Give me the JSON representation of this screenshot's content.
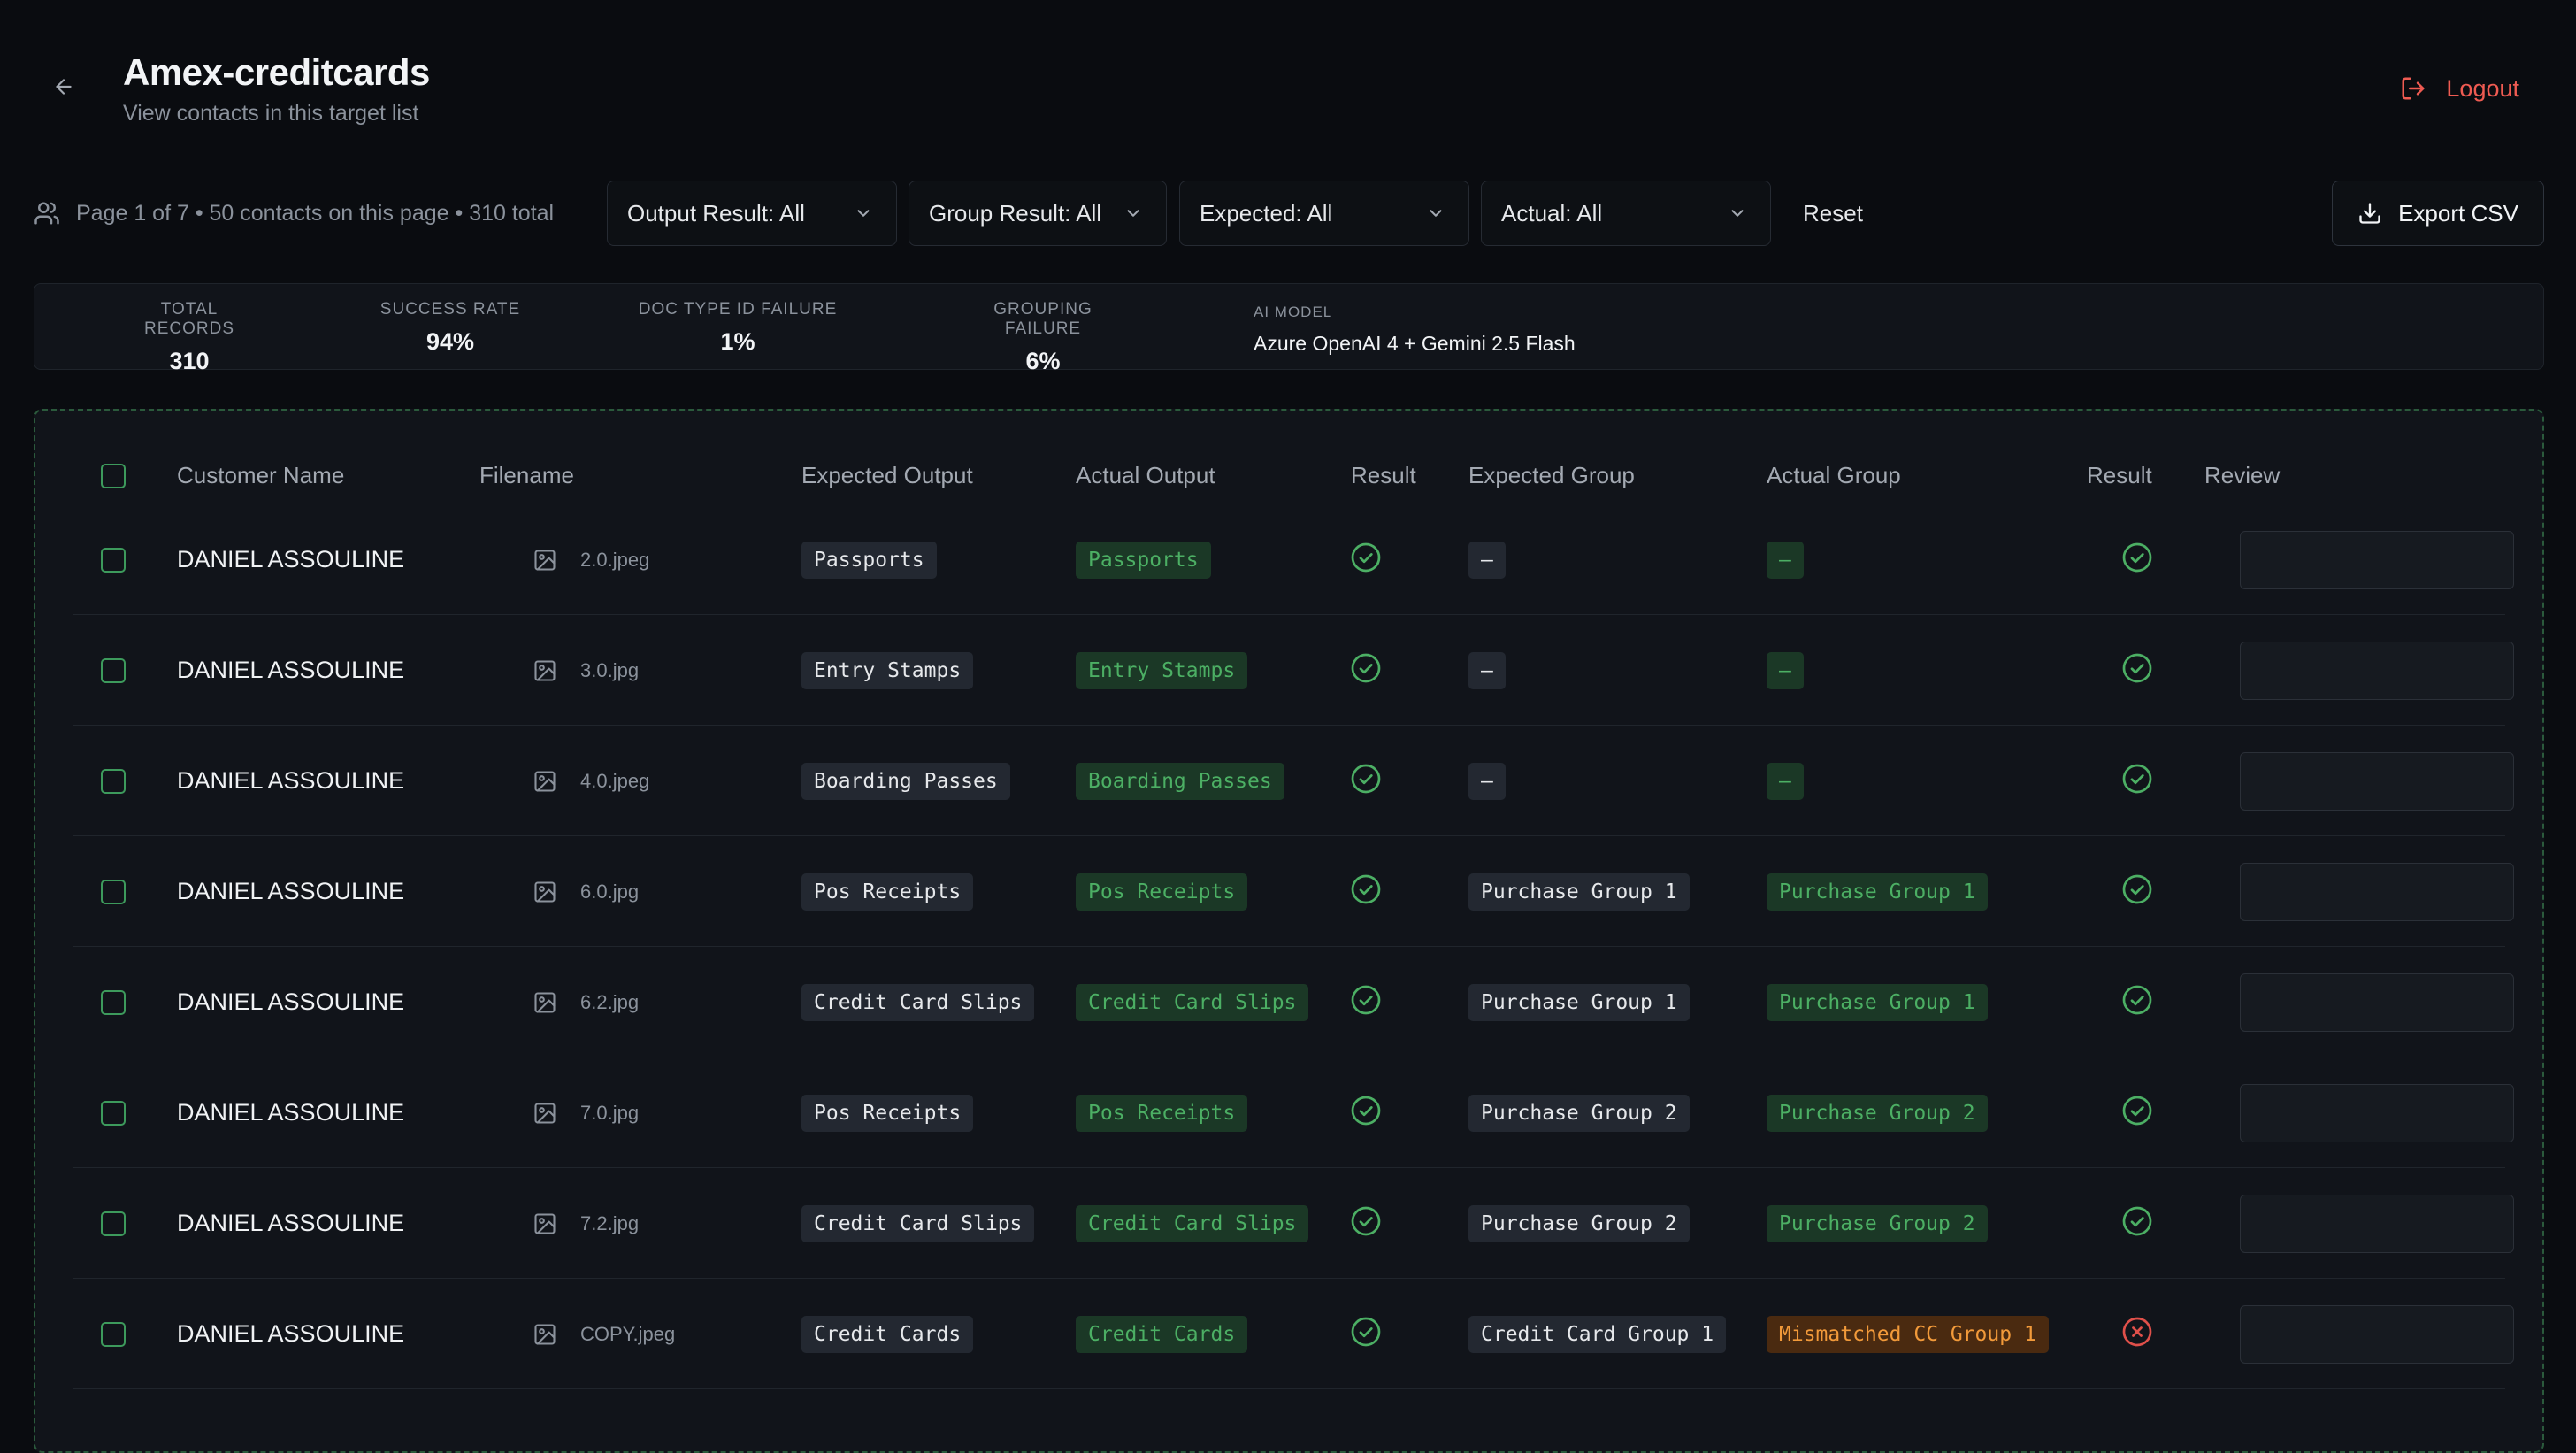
{
  "header": {
    "title": "Amex-creditcards",
    "subtitle": "View contacts in this target list",
    "logout_label": "Logout"
  },
  "toolbar": {
    "page_info": "Page 1 of 7 • 50 contacts on this page • 310 total",
    "filters": [
      {
        "label": "Output Result: All"
      },
      {
        "label": "Group Result: All"
      },
      {
        "label": "Expected: All"
      },
      {
        "label": "Actual: All"
      }
    ],
    "reset_label": "Reset",
    "export_label": "Export CSV"
  },
  "stats": {
    "total_records": {
      "label": "TOTAL RECORDS",
      "value": "310"
    },
    "success_rate": {
      "label": "SUCCESS RATE",
      "value": "94%"
    },
    "doc_type_failure": {
      "label": "DOC TYPE ID FAILURE",
      "value": "1%"
    },
    "grouping_failure": {
      "label": "GROUPING FAILURE",
      "value": "6%"
    },
    "ai_model": {
      "label": "AI MODEL",
      "value": "Azure OpenAI 4 + Gemini 2.5 Flash"
    }
  },
  "table": {
    "columns": {
      "customer_name": "Customer Name",
      "filename": "Filename",
      "expected_output": "Expected Output",
      "actual_output": "Actual Output",
      "result": "Result",
      "expected_group": "Expected Group",
      "actual_group": "Actual Group",
      "group_result": "Result",
      "review": "Review"
    },
    "rows": [
      {
        "customer": "DANIEL ASSOULINE",
        "filename": "2.0.jpeg",
        "expected_output": "Passports",
        "actual_output": "Passports",
        "result": "pass",
        "expected_group": "–",
        "actual_group": "–",
        "actual_group_status": "match",
        "group_result": "pass"
      },
      {
        "customer": "DANIEL ASSOULINE",
        "filename": "3.0.jpg",
        "expected_output": "Entry Stamps",
        "actual_output": "Entry Stamps",
        "result": "pass",
        "expected_group": "–",
        "actual_group": "–",
        "actual_group_status": "match",
        "group_result": "pass"
      },
      {
        "customer": "DANIEL ASSOULINE",
        "filename": "4.0.jpeg",
        "expected_output": "Boarding Passes",
        "actual_output": "Boarding Passes",
        "result": "pass",
        "expected_group": "–",
        "actual_group": "–",
        "actual_group_status": "match",
        "group_result": "pass"
      },
      {
        "customer": "DANIEL ASSOULINE",
        "filename": "6.0.jpg",
        "expected_output": "Pos Receipts",
        "actual_output": "Pos Receipts",
        "result": "pass",
        "expected_group": "Purchase Group 1",
        "actual_group": "Purchase Group 1",
        "actual_group_status": "match",
        "group_result": "pass"
      },
      {
        "customer": "DANIEL ASSOULINE",
        "filename": "6.2.jpg",
        "expected_output": "Credit Card Slips",
        "actual_output": "Credit Card Slips",
        "result": "pass",
        "expected_group": "Purchase Group 1",
        "actual_group": "Purchase Group 1",
        "actual_group_status": "match",
        "group_result": "pass"
      },
      {
        "customer": "DANIEL ASSOULINE",
        "filename": "7.0.jpg",
        "expected_output": "Pos Receipts",
        "actual_output": "Pos Receipts",
        "result": "pass",
        "expected_group": "Purchase Group 2",
        "actual_group": "Purchase Group 2",
        "actual_group_status": "match",
        "group_result": "pass"
      },
      {
        "customer": "DANIEL ASSOULINE",
        "filename": "7.2.jpg",
        "expected_output": "Credit Card Slips",
        "actual_output": "Credit Card Slips",
        "result": "pass",
        "expected_group": "Purchase Group 2",
        "actual_group": "Purchase Group 2",
        "actual_group_status": "match",
        "group_result": "pass"
      },
      {
        "customer": "DANIEL ASSOULINE",
        "filename": "COPY.jpeg",
        "expected_output": "Credit Cards",
        "actual_output": "Credit Cards",
        "result": "pass",
        "expected_group": "Credit Card Group 1",
        "actual_group": "Mismatched CC Group 1",
        "actual_group_status": "mismatch",
        "group_result": "fail"
      }
    ]
  },
  "colors": {
    "pass": "#4caf64",
    "fail": "#e0504a",
    "accent_danger": "#ef5b52",
    "dashed_border": "#2b5a3c"
  },
  "icons": {
    "back": "arrow-left-icon",
    "logout": "logout-icon",
    "contacts": "users-icon",
    "chevron": "chevron-down-icon",
    "export": "download-icon",
    "file": "image-icon",
    "pass": "check-circle-icon",
    "fail": "x-circle-icon"
  }
}
